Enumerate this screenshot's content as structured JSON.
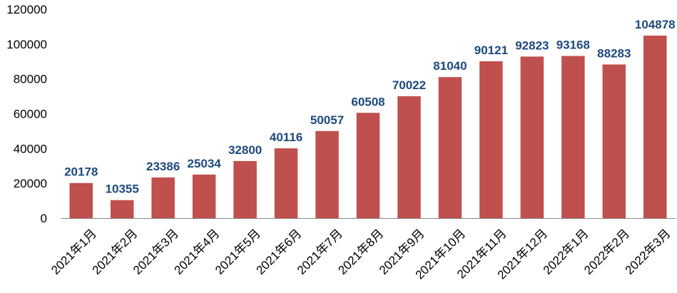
{
  "chart_data": {
    "type": "bar",
    "title": "",
    "xlabel": "",
    "ylabel": "",
    "categories": [
      "2021年1月",
      "2021年2月",
      "2021年3月",
      "2021年4月",
      "2021年5月",
      "2021年6月",
      "2021年7月",
      "2021年8月",
      "2021年9月",
      "2021年10月",
      "2021年11月",
      "2021年12月",
      "2022年1月",
      "2022年2月",
      "2022年3月"
    ],
    "values": [
      20178,
      10355,
      23386,
      25034,
      32800,
      40116,
      50057,
      60508,
      70022,
      81040,
      90121,
      92823,
      93168,
      88283,
      104878
    ],
    "ylim": [
      0,
      120000
    ],
    "yticks": [
      "0",
      "20000",
      "40000",
      "60000",
      "80000",
      "100000",
      "120000"
    ],
    "grid": false,
    "legend": "none",
    "colors": {
      "bar": "#C0504D",
      "data_label": "#1F497D",
      "axis": "#898989"
    }
  }
}
